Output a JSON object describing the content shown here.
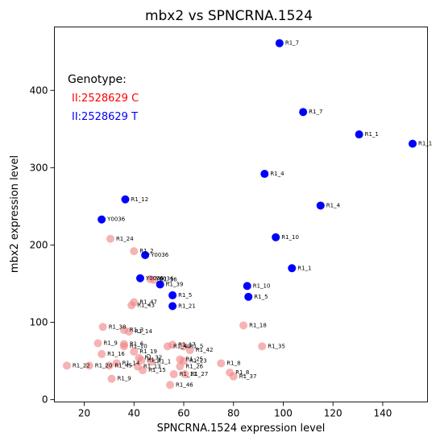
{
  "chart_data": {
    "type": "scatter",
    "title": "mbx2 vs SPNCRNA.1524",
    "xlabel": "SPNCRNA.1524 expression level",
    "ylabel": "mbx2 expression level",
    "xlim": [
      8,
      158
    ],
    "ylim": [
      -3,
      482
    ],
    "xticks": [
      20,
      40,
      60,
      80,
      100,
      120,
      140
    ],
    "yticks": [
      0,
      100,
      200,
      300,
      400
    ],
    "grid": false,
    "legend": {
      "title": "Genotype:",
      "placement": "upper-left",
      "entries": [
        {
          "label": "II:2528629 C",
          "color": "#ff0000"
        },
        {
          "label": "II:2528629 T",
          "color": "#0000ff"
        }
      ]
    },
    "series": [
      {
        "name": "II:2528629 C",
        "color": "#f08080",
        "alpha": 0.6,
        "points": [
          {
            "x": 30.5,
            "y": 208,
            "label": "R1_24"
          },
          {
            "x": 40,
            "y": 192,
            "label": "R1_2"
          },
          {
            "x": 46.5,
            "y": 156,
            "label": "Y0036"
          },
          {
            "x": 48,
            "y": 155,
            "label": "R1_36"
          },
          {
            "x": 40,
            "y": 126,
            "label": "R1_47"
          },
          {
            "x": 39,
            "y": 122,
            "label": "R1_43"
          },
          {
            "x": 84,
            "y": 96,
            "label": "R1_18"
          },
          {
            "x": 91.5,
            "y": 69,
            "label": "R1_35"
          },
          {
            "x": 27.5,
            "y": 94,
            "label": "R1_38"
          },
          {
            "x": 36,
            "y": 90,
            "label": "R1_3"
          },
          {
            "x": 38,
            "y": 88,
            "label": "R1_14"
          },
          {
            "x": 25.5,
            "y": 73,
            "label": "R1_9"
          },
          {
            "x": 36,
            "y": 72,
            "label": "R1_6"
          },
          {
            "x": 36,
            "y": 69,
            "label": "R1_10"
          },
          {
            "x": 40,
            "y": 62,
            "label": "R1_19"
          },
          {
            "x": 27,
            "y": 59,
            "label": "R1_16"
          },
          {
            "x": 53.5,
            "y": 69,
            "label": "R1_40"
          },
          {
            "x": 55.5,
            "y": 71,
            "label": "R1_17"
          },
          {
            "x": 60,
            "y": 69,
            "label": "R1_5"
          },
          {
            "x": 62.5,
            "y": 64,
            "label": "R1_42"
          },
          {
            "x": 42,
            "y": 54,
            "label": "R1_32"
          },
          {
            "x": 43,
            "y": 51,
            "label": "R1_3"
          },
          {
            "x": 58.5,
            "y": 52,
            "label": "R1_25"
          },
          {
            "x": 60,
            "y": 50,
            "label": "R1_23"
          },
          {
            "x": 47,
            "y": 49,
            "label": "R1_1"
          },
          {
            "x": 33,
            "y": 47,
            "label": "R1_14"
          },
          {
            "x": 30,
            "y": 44,
            "label": "R1_45"
          },
          {
            "x": 22,
            "y": 44,
            "label": "R1_20"
          },
          {
            "x": 13,
            "y": 44,
            "label": "R1_22"
          },
          {
            "x": 41.5,
            "y": 43,
            "label": "R1_13"
          },
          {
            "x": 43.5,
            "y": 38,
            "label": "R1_15"
          },
          {
            "x": 58.5,
            "y": 43,
            "label": "R1_26"
          },
          {
            "x": 75,
            "y": 47,
            "label": "R1_8"
          },
          {
            "x": 78.5,
            "y": 35,
            "label": "R1_8"
          },
          {
            "x": 80,
            "y": 30,
            "label": "R1_37"
          },
          {
            "x": 60.5,
            "y": 33,
            "label": "R1_27"
          },
          {
            "x": 56,
            "y": 33,
            "label": "R1_11"
          },
          {
            "x": 31,
            "y": 27,
            "label": "R1_9"
          },
          {
            "x": 54.5,
            "y": 19,
            "label": "R1_46"
          }
        ]
      },
      {
        "name": "II:2528629 T",
        "color": "#0000ff",
        "alpha": 1,
        "points": [
          {
            "x": 98.5,
            "y": 461,
            "label": "R1_7"
          },
          {
            "x": 108,
            "y": 372,
            "label": "R1_7"
          },
          {
            "x": 130.5,
            "y": 343,
            "label": "R1_1"
          },
          {
            "x": 152,
            "y": 331,
            "label": "R1_1"
          },
          {
            "x": 92.5,
            "y": 292,
            "label": "R1_4"
          },
          {
            "x": 115,
            "y": 251,
            "label": "R1_4"
          },
          {
            "x": 36.5,
            "y": 259,
            "label": "R1_12"
          },
          {
            "x": 27,
            "y": 233,
            "label": "Y0036"
          },
          {
            "x": 97,
            "y": 210,
            "label": "R1_10"
          },
          {
            "x": 44.5,
            "y": 187,
            "label": "Y0036"
          },
          {
            "x": 103.5,
            "y": 170,
            "label": "R1_1"
          },
          {
            "x": 42.5,
            "y": 157,
            "label": "Y0036"
          },
          {
            "x": 50.5,
            "y": 149,
            "label": "R1_39"
          },
          {
            "x": 85.5,
            "y": 147,
            "label": "R1_10"
          },
          {
            "x": 55.5,
            "y": 135,
            "label": "R1_5"
          },
          {
            "x": 86,
            "y": 133,
            "label": "R1_5"
          },
          {
            "x": 55.5,
            "y": 121,
            "label": "R1_21"
          }
        ]
      }
    ]
  }
}
